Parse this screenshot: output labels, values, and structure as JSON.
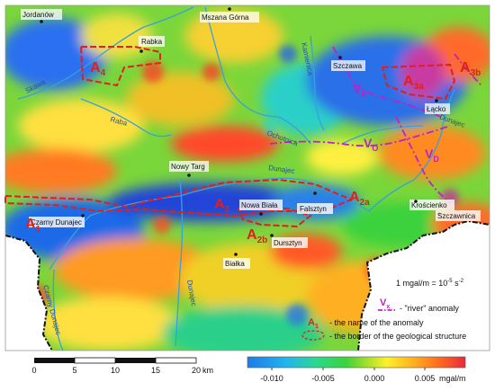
{
  "towns": [
    {
      "name": "Jordanów"
    },
    {
      "name": "Mszana Górna"
    },
    {
      "name": "Rabka"
    },
    {
      "name": "Szczawa"
    },
    {
      "name": "Łącko"
    },
    {
      "name": "Nowy Targ"
    },
    {
      "name": "Nowa Biała"
    },
    {
      "name": "Falsztyn"
    },
    {
      "name": "Krościenko"
    },
    {
      "name": "Szczawnica"
    },
    {
      "name": "Czarny Dunajec"
    },
    {
      "name": "Dursztyn"
    },
    {
      "name": "Białka"
    }
  ],
  "rivers": [
    {
      "name": "Skawa"
    },
    {
      "name": "Raba"
    },
    {
      "name": "Kamienica"
    },
    {
      "name": "Ochotnica"
    },
    {
      "name": "Dunajec"
    },
    {
      "name": "Dunajec"
    },
    {
      "name": "Dunajec"
    },
    {
      "name": "Czarny Dunajec"
    }
  ],
  "anomalies": [
    {
      "id": "A",
      "sub": "4"
    },
    {
      "id": "A",
      "sub": "3a"
    },
    {
      "id": "A",
      "sub": "3b"
    },
    {
      "id": "A",
      "sub": "1"
    },
    {
      "id": "A",
      "sub": "2"
    },
    {
      "id": "A",
      "sub": "2a"
    },
    {
      "id": "A",
      "sub": "2b"
    }
  ],
  "river_anomalies": [
    {
      "id": "V",
      "sub": "K"
    },
    {
      "id": "V",
      "sub": "O"
    },
    {
      "id": "V",
      "sub": "D"
    }
  ],
  "legend": {
    "unit_note": "1 mgal/m = 10",
    "unit_exp": "-5",
    "unit_tail": " s",
    "unit_exp2": "-2",
    "river_symbol": "V",
    "river_symbol_sub": "x",
    "river_text": "- \"river\" anomaly",
    "anom_symbol": "A",
    "anom_symbol_sub": "1",
    "anom_text": "- the name of the anomaly",
    "border_text": "- the border of the geological structure"
  },
  "scalebar": {
    "ticks": [
      "0",
      "5",
      "10",
      "15",
      "20"
    ],
    "unit": "km"
  },
  "colorbar": {
    "ticks": [
      "-0.010",
      "-0.005",
      "0.000",
      "0.005"
    ],
    "unit": "mgal/m",
    "colors": [
      "#1e7be8",
      "#23b4f0",
      "#2cd98c",
      "#3ad23c",
      "#a7e02a",
      "#fff02a",
      "#ffb21e",
      "#ff6a1e",
      "#e82a3c",
      "#c81e6e"
    ]
  },
  "colors": {
    "anomaly_red": "#e0201a",
    "river_anomaly_magenta": "#c020c8",
    "river_blue": "#3aa0d8"
  }
}
